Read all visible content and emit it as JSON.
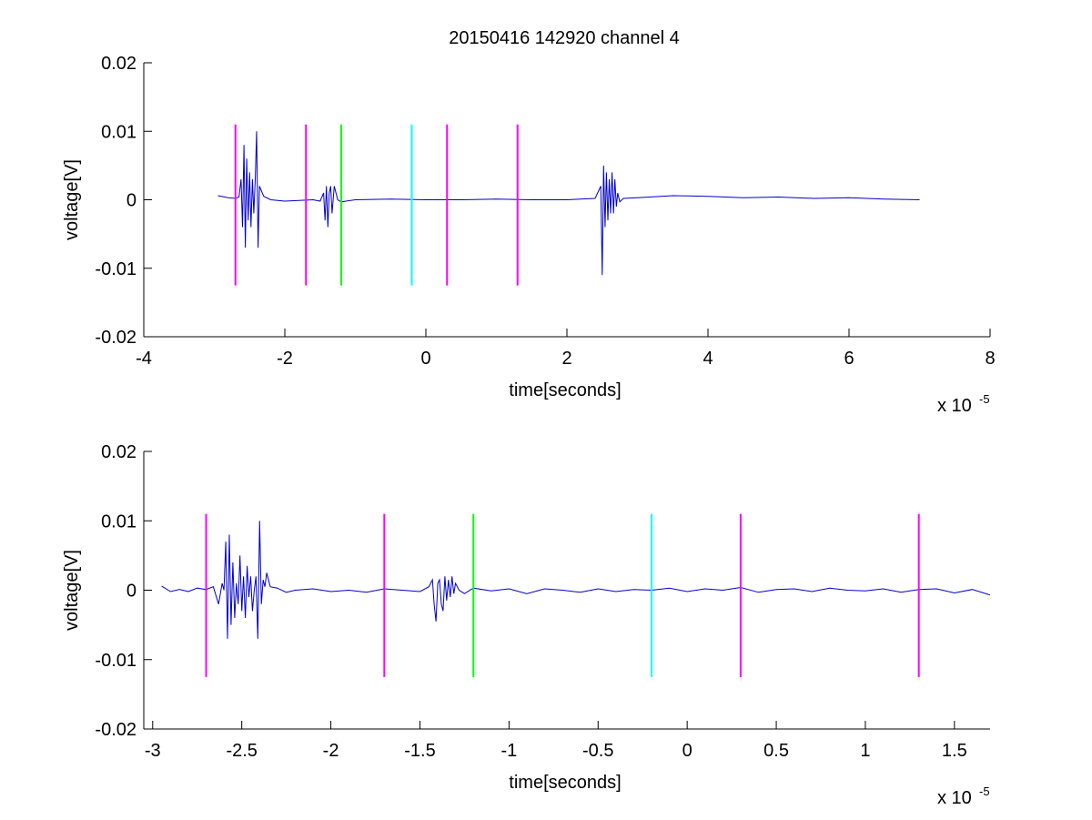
{
  "figure": {
    "title": "20150416 142920 channel 4"
  },
  "colors": {
    "signal": "#0000cc",
    "magenta": "#ff00ff",
    "green": "#00ff00",
    "cyan": "#00ffff",
    "axis": "#000000"
  },
  "chart_data": [
    {
      "type": "line",
      "title": "20150416 142920 channel 4",
      "xlabel": "time[seconds]",
      "ylabel": "voltage[V]",
      "x_exponent_label": "x 10",
      "x_exponent": "-5",
      "xlim": [
        -4,
        8
      ],
      "ylim": [
        -0.02,
        0.02
      ],
      "x_ticks": [
        -4,
        -2,
        0,
        2,
        4,
        6,
        8
      ],
      "x_tick_labels": [
        "-4",
        "-2",
        "0",
        "2",
        "4",
        "6",
        "8"
      ],
      "y_ticks": [
        -0.02,
        -0.01,
        0,
        0.01,
        0.02
      ],
      "y_tick_labels": [
        "-0.02",
        "-0.01",
        "0",
        "0.01",
        "0.02"
      ],
      "grid": false,
      "series": [
        {
          "color": "#0000cc",
          "x": [
            -2.95,
            -2.8,
            -2.7,
            -2.65,
            -2.62,
            -2.6,
            -2.58,
            -2.56,
            -2.54,
            -2.52,
            -2.5,
            -2.48,
            -2.46,
            -2.44,
            -2.42,
            -2.4,
            -2.38,
            -2.36,
            -2.3,
            -2.2,
            -2.0,
            -1.8,
            -1.6,
            -1.5,
            -1.45,
            -1.43,
            -1.41,
            -1.39,
            -1.37,
            -1.35,
            -1.33,
            -1.3,
            -1.25,
            -1.2,
            -1.0,
            -0.5,
            0,
            0.5,
            1.0,
            1.5,
            2.0,
            2.4,
            2.48,
            2.5,
            2.52,
            2.54,
            2.56,
            2.58,
            2.6,
            2.62,
            2.64,
            2.66,
            2.68,
            2.7,
            2.72,
            2.75,
            2.8,
            3.0,
            3.5,
            4.0,
            4.5,
            5.0,
            5.5,
            6.0,
            6.5,
            7.0
          ],
          "y": [
            0.0006,
            0.0003,
            0.0002,
            0.0004,
            0.003,
            -0.004,
            0.008,
            -0.007,
            0.006,
            -0.003,
            0.004,
            -0.004,
            0.003,
            -0.002,
            0.003,
            0.01,
            -0.007,
            0.002,
            0.0005,
            0.0,
            -0.0002,
            -0.0001,
            0.0,
            -0.0002,
            0.001,
            -0.003,
            0.002,
            -0.004,
            0.001,
            0.002,
            -0.002,
            0.002,
            0.0,
            -0.0003,
            0.0,
            0.0001,
            0.0,
            0.0,
            0.0001,
            0.0,
            0.0,
            0.0002,
            0.002,
            -0.011,
            0.005,
            -0.004,
            0.004,
            -0.003,
            0.003,
            -0.002,
            0.004,
            -0.002,
            0.003,
            -0.001,
            0.001,
            -0.0003,
            0.0002,
            0.0003,
            0.0006,
            0.0005,
            0.0003,
            0.0004,
            0.0002,
            0.0003,
            0.0001,
            0.0
          ]
        }
      ],
      "markers": [
        {
          "x": -2.7,
          "y0": -0.0125,
          "y1": 0.011,
          "color": "#ff00ff"
        },
        {
          "x": -1.7,
          "y0": -0.0125,
          "y1": 0.011,
          "color": "#ff00ff"
        },
        {
          "x": -1.2,
          "y0": -0.0125,
          "y1": 0.011,
          "color": "#00ff00"
        },
        {
          "x": -0.2,
          "y0": -0.0125,
          "y1": 0.011,
          "color": "#00ffff"
        },
        {
          "x": 0.3,
          "y0": -0.0125,
          "y1": 0.011,
          "color": "#ff00ff"
        },
        {
          "x": 1.3,
          "y0": -0.0125,
          "y1": 0.011,
          "color": "#ff00ff"
        }
      ]
    },
    {
      "type": "line",
      "title": "",
      "xlabel": "time[seconds]",
      "ylabel": "voltage[V]",
      "x_exponent_label": "x 10",
      "x_exponent": "-5",
      "xlim": [
        -3.05,
        1.7
      ],
      "ylim": [
        -0.02,
        0.02
      ],
      "x_ticks": [
        -3,
        -2.5,
        -2,
        -1.5,
        -1,
        -0.5,
        0,
        0.5,
        1,
        1.5
      ],
      "x_tick_labels": [
        "-3",
        "-2.5",
        "-2",
        "-1.5",
        "-1",
        "-0.5",
        "0",
        "0.5",
        "1",
        "1.5"
      ],
      "y_ticks": [
        -0.02,
        -0.01,
        0,
        0.01,
        0.02
      ],
      "y_tick_labels": [
        "-0.02",
        "-0.01",
        "0",
        "0.01",
        "0.02"
      ],
      "grid": false,
      "series": [
        {
          "color": "#0000cc",
          "x": [
            -2.95,
            -2.9,
            -2.85,
            -2.8,
            -2.75,
            -2.7,
            -2.66,
            -2.63,
            -2.61,
            -2.6,
            -2.59,
            -2.58,
            -2.57,
            -2.56,
            -2.55,
            -2.54,
            -2.53,
            -2.52,
            -2.51,
            -2.5,
            -2.49,
            -2.48,
            -2.47,
            -2.46,
            -2.45,
            -2.44,
            -2.43,
            -2.42,
            -2.41,
            -2.4,
            -2.39,
            -2.38,
            -2.37,
            -2.36,
            -2.34,
            -2.3,
            -2.25,
            -2.2,
            -2.1,
            -2.0,
            -1.9,
            -1.8,
            -1.7,
            -1.6,
            -1.5,
            -1.45,
            -1.43,
            -1.42,
            -1.41,
            -1.4,
            -1.39,
            -1.38,
            -1.37,
            -1.36,
            -1.35,
            -1.34,
            -1.33,
            -1.32,
            -1.31,
            -1.3,
            -1.28,
            -1.25,
            -1.2,
            -1.1,
            -1.0,
            -0.9,
            -0.8,
            -0.7,
            -0.6,
            -0.5,
            -0.4,
            -0.3,
            -0.2,
            -0.1,
            0,
            0.1,
            0.2,
            0.3,
            0.4,
            0.5,
            0.6,
            0.7,
            0.8,
            0.9,
            1.0,
            1.1,
            1.2,
            1.3,
            1.4,
            1.5,
            1.6,
            1.7
          ],
          "y": [
            0.0006,
            -0.0002,
            0.0001,
            -0.0002,
            0.0003,
            0.0001,
            0.0005,
            -0.002,
            0.001,
            0.0,
            0.007,
            -0.007,
            0.008,
            -0.005,
            0.004,
            -0.004,
            0.001,
            -0.002,
            0.005,
            -0.003,
            0.002,
            -0.004,
            0.0035,
            -0.001,
            0.002,
            -0.003,
            0.0,
            0.002,
            -0.007,
            0.01,
            -0.002,
            0.0015,
            0.0005,
            0.0025,
            0.0005,
            0.0003,
            -0.0003,
            0.0,
            0.0002,
            -0.0002,
            0.0,
            -0.0003,
            0.0002,
            0.0,
            -0.0002,
            0.0005,
            0.0015,
            -0.002,
            -0.0045,
            0.001,
            0.0015,
            -0.002,
            -0.003,
            0.002,
            -0.0015,
            0.0015,
            -0.001,
            0.002,
            -0.0005,
            0.001,
            0.0,
            -0.0005,
            0.0003,
            -0.0001,
            0.0002,
            -0.0005,
            0.0002,
            0.0,
            -0.0003,
            0.0002,
            -0.0002,
            0.0001,
            0.0,
            0.0003,
            -0.0002,
            0.0002,
            0.0,
            0.0004,
            -0.0003,
            0.0001,
            0.0002,
            -0.0002,
            0.0003,
            0.0,
            -0.0001,
            0.0002,
            -0.0003,
            0.0001,
            0.0002,
            -0.0004,
            0.0001,
            -0.0007
          ]
        }
      ],
      "markers": [
        {
          "x": -2.7,
          "y0": -0.0125,
          "y1": 0.011,
          "color": "#ff00ff"
        },
        {
          "x": -1.7,
          "y0": -0.0125,
          "y1": 0.011,
          "color": "#ff00ff"
        },
        {
          "x": -1.2,
          "y0": -0.0125,
          "y1": 0.011,
          "color": "#00ff00"
        },
        {
          "x": -0.2,
          "y0": -0.0125,
          "y1": 0.011,
          "color": "#00ffff"
        },
        {
          "x": 0.3,
          "y0": -0.0125,
          "y1": 0.011,
          "color": "#ff00ff"
        },
        {
          "x": 1.3,
          "y0": -0.0125,
          "y1": 0.011,
          "color": "#ff00ff"
        }
      ]
    }
  ]
}
